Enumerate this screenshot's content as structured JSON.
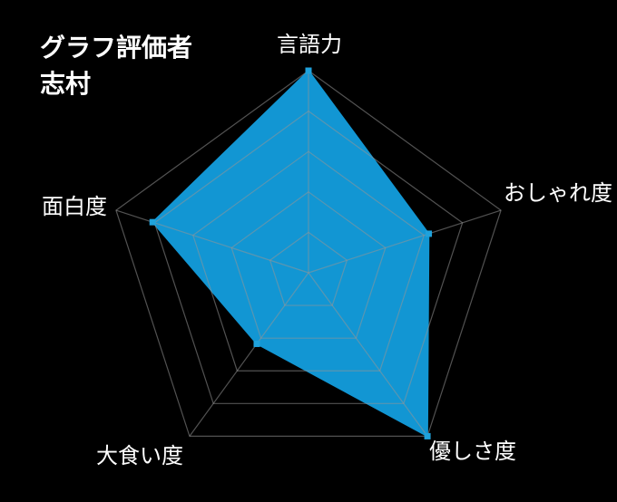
{
  "background_color": "#000000",
  "title": {
    "line1": "グラフ評価者",
    "line2": "志村",
    "color": "#ffffff"
  },
  "chart_data": {
    "type": "radar",
    "categories": [
      "言語力",
      "おしゃれ度",
      "優しさ度",
      "大食い度",
      "面白度"
    ],
    "values": [
      5,
      3,
      5,
      2,
      4
    ],
    "normalized_radii": [
      1.0,
      0.625,
      1.0,
      0.435,
      0.81
    ],
    "scale": {
      "min": 0,
      "max": 5,
      "rings": 5,
      "grid": true,
      "tick_labels": false
    },
    "legend": "none",
    "marker_shape": "square",
    "colors": {
      "series_fill": "#1296D3",
      "marker": "#1FA2DC",
      "grid": "rgba(150,150,150,0.55)",
      "label": "#ffffff",
      "background": "#000000"
    }
  }
}
